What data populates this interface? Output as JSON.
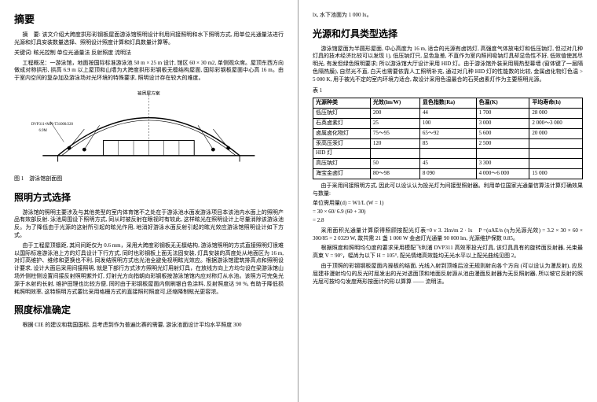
{
  "left": {
    "title_abstract": "摘要",
    "abstract_p1": "摘　要: 该文介绍大跨度拱形彩钢板屋面游泳馆照明设计利用间接照明和水下照明方式, 用单位光通量法进行光源和灯具安装数量选择、照明设计照度计算和灯具数量计算等。",
    "abstract_p2": "关键词: 眩光控制 单位光通量法 反射照度 流明法",
    "proj_p": "工程概况：一游泳馆，地面按国际标准游泳池 50 m × 25 m 设计, 馆区 60 × 30 m2, 单侧观众席。屋顶东西方向做成对称拱形, 拱高 6.9 m 以上屋顶和山墙为大跨度拱形彩钢板无檩结构屋面, 国际彩钢板屋面中心高 16 m。由于室内空间的复杂加及游泳场对光环境的特殊要求, 照明设计存在较大的难度。",
    "fig_caption": "图 1　游泳馆剖面图",
    "h_lighting": "照明方式选择",
    "lighting_p1": "游泳馆的照明主要涉及与其他类型的室内体育馆不之处在于游泳池水面发游泳项目本该池内水面上的照明产品有效部反射. 泳池周围设下照明方式, 同从时被反射在眼视时有较此, 这样眩光在照明设计上尽量消除该游泳池反。为了降低由于光源的这射所引起的眩光作用, 地消好游泳水面反射引起的眩光效应游泳馆照明设计如下方式。",
    "lighting_p2": "由于工程屋顶檩距, 其间间距仅为 0.6 mm，采用大跨度彩钢板无无檩结构, 游泳馆照明的方式直接照明灯很难以国际标准游泳池上方的灯具设计下行方式, 同时也彩钢板上面无法固安装, 灯具安装的高度处从地面区为 16 m, 对灯高维护、维修和更换也不利, 同发结照明方式也光池全避免视明眩光效应。根据游泳馆建筑排高点和照明设计要求, 设计大面后采用间接照明, 就是下部行方式涉方照明光灯用射灯具，在放线方向上方均匀设在梁游泳馆山场外侧柱侧设置间接反射照明紫外灯, 灯射光方向指朝向彩钢板按游泳馆馆内应对称灯从水池。该照方可完免光源于水射的长射, 维护田理也比较方便, 同时由于彩钢板屋面内侧刷银白色涂料, 反射照度达 90 %, 有助于降低损耗照明效率, 这特照明方式要比采用格栅方式的直接照时照度可,还缩降制眩光更容浓。",
    "h_std": "照度标准确定",
    "std_p": "根据 CIE 的建议和我国国标, 且考虑到作为普遍比赛的需要, 游泳池面设计平均水平照度 300"
  },
  "right": {
    "top_line": "lx, 水下池面为 1 000 lx。",
    "h_source": "光源和灯具类型选择",
    "source_p1": "游泳馆屋面为半圆形屋面, 中心高度为 16 m, 适合的光源有卤钨灯, 高强度气体放电灯和低压钠灯, 但过对几种灯具的技术经济比较可以发现 1), 低压钠灯只, 显色急差, 不直作为室内照间吸钠灯具却显色性不好, 低效值使其尽明光, 有发但绿色照明要求; 所以游泳馆大厅设计采用 HID 灯。由于游泳馆外装采用隔热型幕墙 (窗体键了一层隔色隔热膜), 自然光不直, 白天也需要依靠人工照明补充, 通过对几种 HID 灯的性能数的比较, 金属卤化物灯色温 > 5 000 K, 用于被光不定的室内环境力适合, 故设计采用色温最合的石英卤素灯作为主要照明光源。",
    "tbl_label": "表 1",
    "table": {
      "columns": [
        "光源种类",
        "光效(lm/W)",
        "显色指数(Ra)",
        "色温(K)",
        "平均寿命(h)"
      ],
      "rows": [
        [
          "低压钠灯",
          "200",
          "44",
          "1 700",
          "28 000"
        ],
        [
          "石英卤素灯",
          "25",
          "100",
          "3 000",
          "2 000～3 000"
        ],
        [
          "卤属卤化物灯",
          "75～95",
          "65～92",
          "5 600",
          "20 000"
        ],
        [
          "汞高压汞灯",
          "120",
          "85",
          "2 500",
          ""
        ],
        [
          "HID 灯",
          "",
          "",
          "",
          ""
        ],
        [
          "高压钠灯",
          "50",
          "45",
          "3 300",
          ""
        ],
        [
          "海宝金卤灯",
          "80～98",
          "8 090",
          "4 000～6 000",
          "15 000"
        ]
      ]
    },
    "calc_label": "由于采用间接照明方式, 因此可以设认认为投光灯为间接型照射器。利用单位国家光通量信算法计算灯确效果与数量:",
    "eq1": "单位需用量(d) = W1/L (W = 1)",
    "eq2": "= 30 × 60/ 6.9 (60 + 30)",
    "eq3": "= 2.8",
    "calc_p2": "采用面积光通量计算原得照顾按配光灯表=0 v 3. 2lm/m 2 · lx　P =(αAE/n (η为光源光效) = 3.2 × 30 × 60 × 300/85 = 2 0329 W, 故共需 21 盏 1 000 W 金卤灯光通量 90 000 lm, 光源维护保数 0.85。",
    "calc_p3": "根据照度和照明均匀度的要求采用模配飞利浦 DVP311 高效率投光灯具, 该灯具具有的旋转面反射器, 光束最高束 V = 90°，幅尚为以下 H = 105°, 配光情绪高效能均无光水平以上配光曲线见图 2。",
    "calc_p4": "由于顶照的彩钢钢板屋面内操板的结面, 光线入射到顶维后没无规则射向各个方向 (可以设认为漫反射), 应反屈建非漫射均匀的反光时屈发出的光对透面顶和地面反射源从池由漫面反射器为无反照射器, 所以坡它反射的照光屈可按均匀发度两形按面计的形以算算 —— 流明法。"
  },
  "figure": {
    "label_top": "被周屋方案",
    "label_dim": "DVP311×MPI-T31000/220",
    "label_h": "6.9M",
    "bg": "#ffffff",
    "stroke": "#000000"
  }
}
